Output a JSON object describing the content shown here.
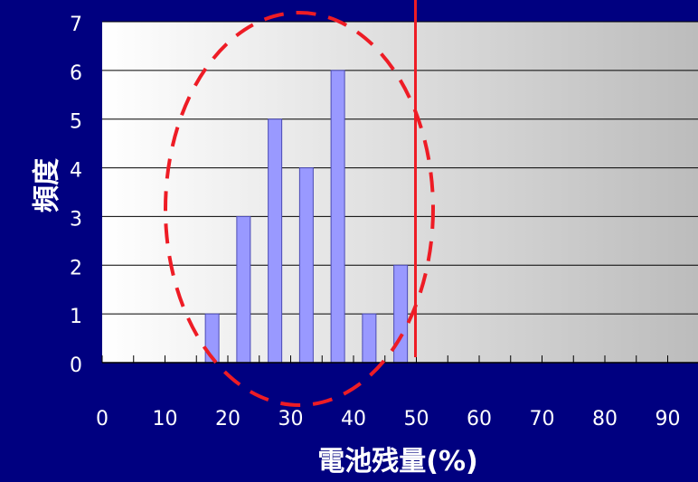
{
  "chart_data": {
    "type": "bar",
    "title": "",
    "xlabel": "電池残量(%)",
    "ylabel": "頻度",
    "xlim": [
      0,
      95
    ],
    "ylim": [
      0,
      7
    ],
    "x_ticks": [
      "0",
      "10",
      "20",
      "30",
      "40",
      "50",
      "60",
      "70",
      "80",
      "90"
    ],
    "y_ticks": [
      "0",
      "1",
      "2",
      "3",
      "4",
      "5",
      "6",
      "7"
    ],
    "grid": "horizontal",
    "bin_width": 5,
    "x": [
      17.5,
      22.5,
      27.5,
      32.5,
      37.5,
      42.5,
      47.5
    ],
    "values": [
      1,
      3,
      5,
      4,
      6,
      1,
      2
    ],
    "annotations": {
      "threshold_line_x": 50,
      "highlight_ellipse": "around bars from 15 to 50"
    }
  },
  "colors": {
    "background": "#000080",
    "plot_gradient_left": "#ffffff",
    "plot_gradient_right": "#bcbcbc",
    "bar_fill": "#9999ff",
    "bar_stroke": "#4b4bb5",
    "annotation": "#ee1c25",
    "text": "#ffffff"
  }
}
